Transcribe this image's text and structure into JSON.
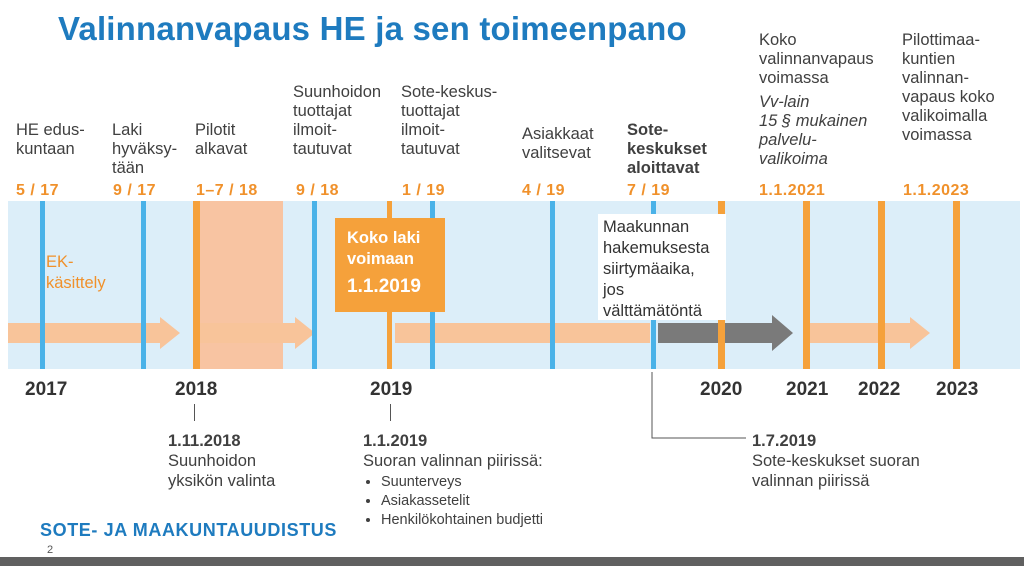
{
  "slide": {
    "title": "Valinnanvapaus HE ja sen toimeenpano",
    "footer": "SOTE- JA MAAKUNTAUUDISTUS",
    "page_number": "2"
  },
  "timeline": {
    "events": [
      {
        "id": "he",
        "label": [
          "HE edus-",
          "kuntaan"
        ],
        "date": "5 / 17"
      },
      {
        "id": "laki",
        "label": [
          "Laki",
          "hyväksy-",
          "tään"
        ],
        "date": "9 / 17"
      },
      {
        "id": "pilotit",
        "label": [
          "Pilotit",
          "alkavat"
        ],
        "date": "1–7 / 18"
      },
      {
        "id": "suunhoidon",
        "label": [
          "Suunhoidon",
          "tuottajat",
          "ilmoit-",
          "tautuvat"
        ],
        "date": "9 / 18"
      },
      {
        "id": "sote_tuottajat",
        "label": [
          "Sote-keskus-",
          "tuottajat",
          "ilmoit-",
          "tautuvat"
        ],
        "date": "1 / 19"
      },
      {
        "id": "asiakkaat",
        "label": [
          "Asiakkaat",
          "valitsevat"
        ],
        "date": "4 / 19"
      },
      {
        "id": "sote_aloittavat",
        "label": [
          "Sote-",
          "keskukset",
          "aloittavat"
        ],
        "date": "7 / 19"
      },
      {
        "id": "koko_vv",
        "label": [
          "Koko",
          "valinnanvapaus",
          "voimassa"
        ],
        "italic_label": [
          "Vv-lain",
          "15 § mukainen",
          "palvelu-",
          "valikoima"
        ],
        "date": "1.1.2021"
      },
      {
        "id": "pilottimaa",
        "label": [
          "Pilottimaa-",
          "kuntien",
          "valinnan-",
          "vapaus koko",
          "valikoimalla",
          "voimassa"
        ],
        "date": "1.1.2023"
      }
    ],
    "ek_label": [
      "EK-",
      "käsittely"
    ],
    "koko_laki": {
      "line1": "Koko laki",
      "line2": "voimaan",
      "date": "1.1.2019"
    },
    "maakunnan": [
      "Maakunnan",
      "hakemuksesta",
      "siirtymäaika,",
      "jos",
      "välttämätöntä"
    ],
    "years": [
      "2017",
      "2018",
      "2019",
      "2020",
      "2021",
      "2022",
      "2023"
    ]
  },
  "callouts": {
    "c2018": {
      "date": "1.11.2018",
      "lines": [
        "Suunhoidon",
        "yksikön valinta"
      ]
    },
    "c2019": {
      "date": "1.1.2019",
      "lead": "Suoran valinnan piirissä:",
      "bullets": [
        "Suunterveys",
        "Asiakassetelit",
        "Henkilökohtainen budjetti"
      ]
    },
    "c2019b": {
      "date": "1.7.2019",
      "lines": [
        "Sote-keskukset suoran",
        "valinnan piirissä"
      ]
    }
  },
  "colors": {
    "title_blue": "#1e7bbf",
    "orange": "#f5a13b",
    "light_blue": "#4ab2e8",
    "band": "#dceef9",
    "peach": "#f8c4a2",
    "gray_arrow": "#7a7a7a"
  }
}
